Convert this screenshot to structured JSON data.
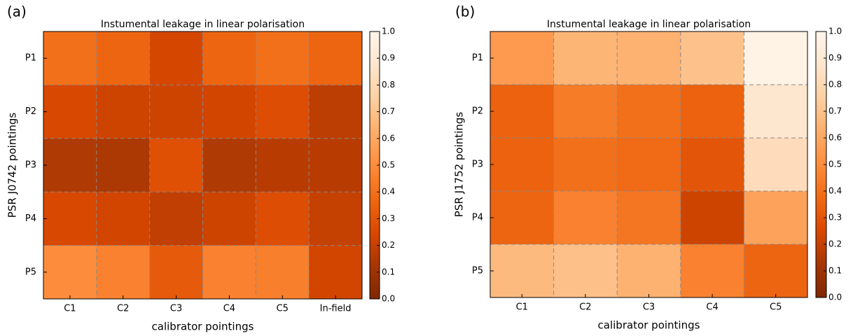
{
  "chart_data": [
    {
      "type": "heatmap",
      "panel": "(a)",
      "title": "Instumental leakage in linear polarisation",
      "xlabel": "calibrator pointings",
      "ylabel": "PSR J0742 pointings",
      "categories": [
        "C1",
        "C2",
        "C3",
        "C4",
        "C5",
        "In-field"
      ],
      "rows": [
        "P1",
        "P2",
        "P3",
        "P4",
        "P5"
      ],
      "values": [
        [
          0.4,
          0.36,
          0.24,
          0.36,
          0.4,
          0.36
        ],
        [
          0.25,
          0.22,
          0.22,
          0.23,
          0.27,
          0.18
        ],
        [
          0.15,
          0.14,
          0.28,
          0.15,
          0.17,
          0.17
        ],
        [
          0.25,
          0.23,
          0.19,
          0.22,
          0.27,
          0.2
        ],
        [
          0.5,
          0.46,
          0.32,
          0.46,
          0.45,
          0.23
        ]
      ],
      "clim": [
        0,
        1
      ],
      "cticks": [
        {
          "value": 0,
          "label": "0.0"
        },
        0.1,
        0.2,
        0.3,
        0.4,
        0.5,
        0.6,
        0.7,
        0.8,
        0.9,
        {
          "value": 1,
          "label": "1.0"
        }
      ],
      "colormap": [
        "#7f2704",
        "#a63603",
        "#d94801",
        "#f16913",
        "#fd8d3c",
        "#fdae6b",
        "#fdd0a2",
        "#fee6ce",
        "#fff5eb"
      ],
      "grid": true
    },
    {
      "type": "heatmap",
      "panel": "(b)",
      "title": "Instumental leakage in linear polarisation",
      "xlabel": "calibrator pointings",
      "ylabel": "PSR J1752 pointings",
      "categories": [
        "C1",
        "C2",
        "C3",
        "C4",
        "C5"
      ],
      "rows": [
        "P1",
        "P2",
        "P3",
        "P4",
        "P5"
      ],
      "values": [
        [
          0.55,
          0.65,
          0.64,
          0.7,
          0.98
        ],
        [
          0.35,
          0.44,
          0.4,
          0.35,
          0.88
        ],
        [
          0.35,
          0.4,
          0.38,
          0.3,
          0.82
        ],
        [
          0.36,
          0.46,
          0.42,
          0.22,
          0.58
        ],
        [
          0.67,
          0.69,
          0.64,
          0.46,
          0.36
        ]
      ],
      "clim": [
        0,
        1
      ],
      "cticks": [
        {
          "value": 0,
          "label": "0.0"
        },
        0.1,
        0.2,
        0.3,
        0.4,
        0.5,
        0.6,
        0.7,
        0.8,
        0.9,
        {
          "value": 1,
          "label": "1.0"
        }
      ],
      "colormap": [
        "#7f2704",
        "#a63603",
        "#d94801",
        "#f16913",
        "#fd8d3c",
        "#fdae6b",
        "#fdd0a2",
        "#fee6ce",
        "#fff5eb"
      ],
      "grid": true
    }
  ]
}
